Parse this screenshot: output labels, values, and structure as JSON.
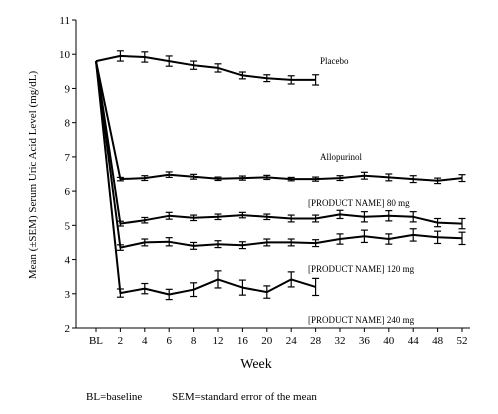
{
  "chart_data": {
    "type": "line",
    "title": "",
    "xlabel": "Week",
    "ylabel": "Mean (±SEM) Serum Uric Acid Level (mg/dL)",
    "ylim": [
      2,
      11
    ],
    "yticks": [
      2,
      3,
      4,
      5,
      6,
      7,
      8,
      9,
      10,
      11
    ],
    "categories": [
      "BL",
      "2",
      "4",
      "6",
      "8",
      "12",
      "16",
      "20",
      "24",
      "28",
      "32",
      "36",
      "40",
      "44",
      "48",
      "52"
    ],
    "grid": false,
    "series": [
      {
        "name": "Placebo",
        "values": [
          9.8,
          9.95,
          9.92,
          9.8,
          9.68,
          9.6,
          9.38,
          9.3,
          9.25,
          9.25,
          null,
          null,
          null,
          null,
          null,
          null
        ],
        "errors": [
          0.07,
          0.15,
          0.15,
          0.15,
          0.12,
          0.12,
          0.1,
          0.1,
          0.12,
          0.15,
          null,
          null,
          null,
          null,
          null,
          null
        ]
      },
      {
        "name": "Allopurinol",
        "values": [
          9.8,
          6.35,
          6.38,
          6.48,
          6.42,
          6.36,
          6.38,
          6.4,
          6.35,
          6.35,
          6.38,
          6.45,
          6.4,
          6.35,
          6.3,
          6.38
        ],
        "errors": [
          0.07,
          0.05,
          0.07,
          0.08,
          0.07,
          0.05,
          0.06,
          0.06,
          0.05,
          0.06,
          0.07,
          0.1,
          0.1,
          0.1,
          0.08,
          0.1
        ]
      },
      {
        "name": "[PRODUCT NAME] 80 mg",
        "values": [
          9.8,
          5.05,
          5.15,
          5.28,
          5.22,
          5.25,
          5.3,
          5.25,
          5.2,
          5.2,
          5.32,
          5.25,
          5.28,
          5.25,
          5.08,
          5.05
        ],
        "errors": [
          0.07,
          0.07,
          0.08,
          0.1,
          0.08,
          0.08,
          0.08,
          0.08,
          0.1,
          0.1,
          0.12,
          0.15,
          0.15,
          0.15,
          0.12,
          0.15
        ]
      },
      {
        "name": "[PRODUCT NAME] 120 mg",
        "values": [
          9.8,
          4.35,
          4.5,
          4.52,
          4.4,
          4.45,
          4.42,
          4.5,
          4.5,
          4.48,
          4.6,
          4.68,
          4.6,
          4.72,
          4.65,
          4.62
        ],
        "errors": [
          0.07,
          0.08,
          0.1,
          0.12,
          0.1,
          0.1,
          0.1,
          0.1,
          0.1,
          0.1,
          0.15,
          0.18,
          0.15,
          0.18,
          0.18,
          0.18
        ]
      },
      {
        "name": "[PRODUCT NAME] 240 mg",
        "values": [
          9.8,
          3.02,
          3.15,
          2.98,
          3.12,
          3.42,
          3.18,
          3.05,
          3.42,
          3.2,
          null,
          null,
          null,
          null,
          null,
          null
        ],
        "errors": [
          0.07,
          0.12,
          0.15,
          0.15,
          0.2,
          0.25,
          0.22,
          0.18,
          0.22,
          0.25,
          null,
          null,
          null,
          null,
          null,
          null
        ]
      }
    ]
  },
  "footnote": {
    "baseline": "BL=baseline",
    "sem": "SEM=standard error of the mean"
  }
}
